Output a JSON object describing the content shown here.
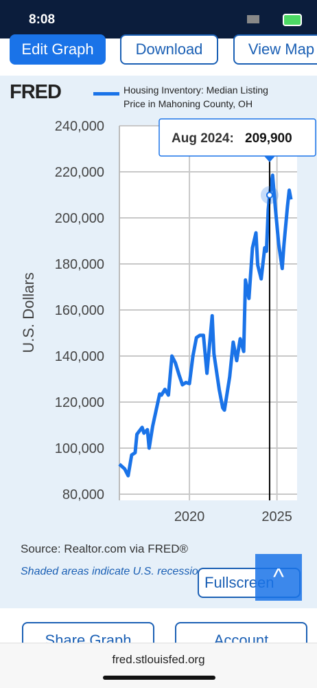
{
  "status_bar": {
    "time": "8:08"
  },
  "toolbar": {
    "edit": "Edit Graph",
    "download": "Download",
    "map": "View Map"
  },
  "logo": "FRED",
  "chart_data": {
    "type": "line",
    "series": [
      {
        "name": "Housing Inventory: Median Listing Price in Mahoning County, OH",
        "color": "#1a73e8",
        "values": [
          93000,
          91000,
          88000,
          97000,
          98000,
          106000,
          109000,
          106500,
          108000,
          100000,
          109500,
          116500,
          123500,
          123000,
          125500,
          123000,
          140000,
          137000,
          132000,
          127500,
          128500,
          128000,
          140000,
          148000,
          149000,
          149000,
          132500,
          157500,
          141000,
          125500,
          117500,
          116500,
          131000,
          146000,
          138000,
          147500,
          142000,
          173000,
          165000,
          187000,
          193500,
          179500,
          173500,
          187000,
          185500,
          203500,
          209900,
          218500,
          205000,
          188500,
          178000,
          188500,
          205000,
          212000,
          208000
        ]
      }
    ],
    "x": [
      2016.0,
      2016.3,
      2016.5,
      2016.7,
      2016.9,
      2017.0,
      2017.3,
      2017.4,
      2017.6,
      2017.7,
      2017.9,
      2018.1,
      2018.3,
      2018.4,
      2018.6,
      2018.8,
      2019.0,
      2019.2,
      2019.4,
      2019.6,
      2019.8,
      2020.0,
      2020.2,
      2020.4,
      2020.6,
      2020.8,
      2021.0,
      2021.3,
      2021.4,
      2021.7,
      2021.9,
      2022.0,
      2022.3,
      2022.5,
      2022.7,
      2022.9,
      2023.1,
      2023.2,
      2023.4,
      2023.6,
      2023.8,
      2023.9,
      2024.1,
      2024.3,
      2024.4,
      2024.5,
      2024.58,
      2024.75,
      2024.9,
      2025.1,
      2025.3,
      2025.4,
      2025.6,
      2025.7,
      2025.8
    ],
    "xlim": [
      2016.0,
      2026.15
    ],
    "xticks": [
      2020,
      2025
    ],
    "ylim": [
      77300,
      240000
    ],
    "yticks": [
      {
        "value": 80000,
        "label": "80,000"
      },
      {
        "value": 100000,
        "label": "100,000"
      },
      {
        "value": 120000,
        "label": "120,000"
      },
      {
        "value": 140000,
        "label": "140,000"
      },
      {
        "value": 160000,
        "label": "160,000"
      },
      {
        "value": 180000,
        "label": "180,000"
      },
      {
        "value": 200000,
        "label": "200,000"
      },
      {
        "value": 220000,
        "label": "220,000"
      },
      {
        "value": 240000,
        "label": "240,000"
      }
    ],
    "ylabel": "U.S. Dollars",
    "grid": true,
    "tooltip": {
      "label": "Aug 2024:",
      "value": 209900,
      "value_label": "209,900"
    }
  },
  "notes": {
    "source": "Source: Realtor.com via FRED®",
    "shaded": "Shaded areas indicate U.S. recessions",
    "fullscreen": "Fullscreen"
  },
  "bottom_buttons": {
    "share": "Share Graph",
    "account": "Account"
  },
  "address": "fred.stlouisfed.org"
}
